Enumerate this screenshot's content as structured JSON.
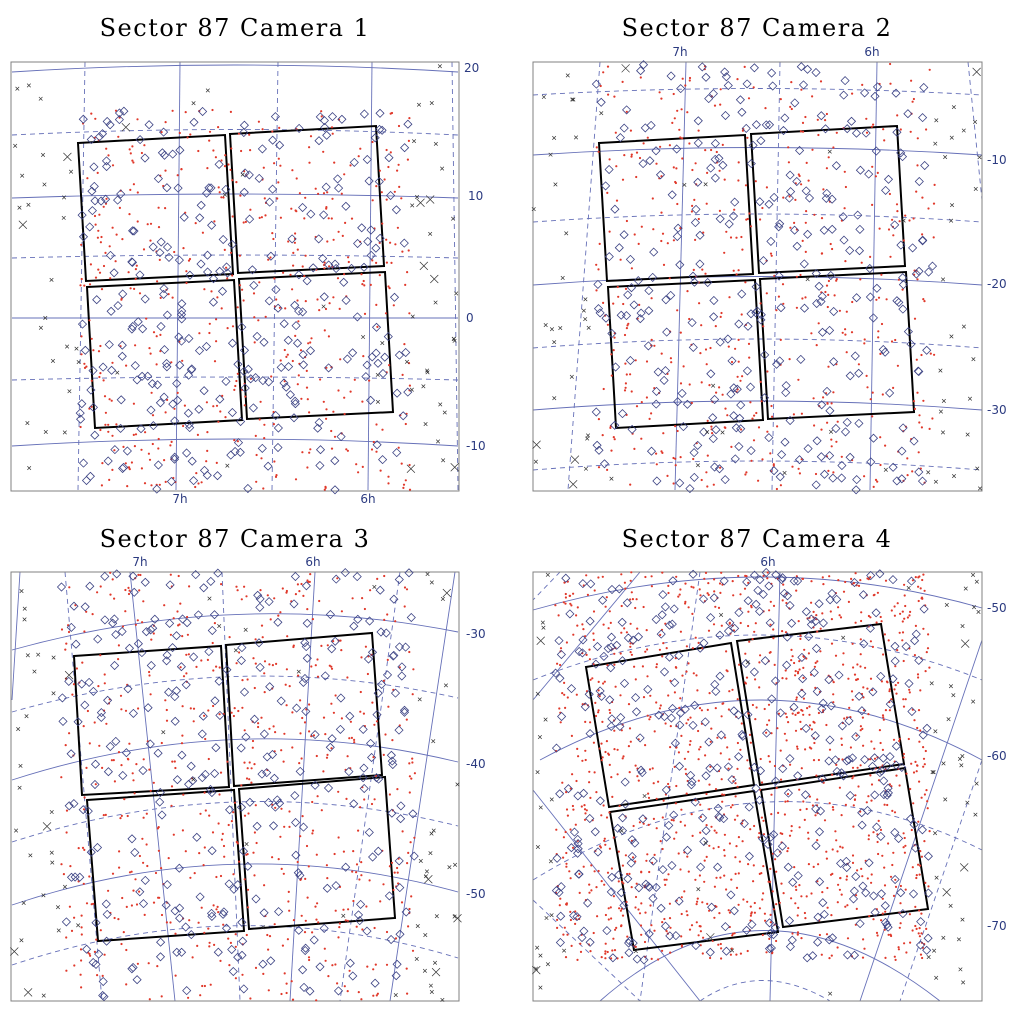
{
  "colors": {
    "grid": "#6670b8",
    "diamond": "#3c4384",
    "dot": "#e0382a",
    "cross": "#333333",
    "ccd": "#000000",
    "frame": "#808080"
  },
  "panels": [
    {
      "title": "Sector 87 Camera 1",
      "ra_labels": [
        "7h",
        "6h"
      ],
      "dec_labels": [
        "20",
        "10",
        "0",
        "-10"
      ]
    },
    {
      "title": "Sector 87 Camera 2",
      "ra_labels": [
        "7h",
        "6h"
      ],
      "dec_labels": [
        "-10",
        "-20",
        "-30"
      ]
    },
    {
      "title": "Sector 87 Camera 3",
      "ra_labels": [
        "7h",
        "6h"
      ],
      "dec_labels": [
        "-30",
        "-40",
        "-50"
      ]
    },
    {
      "title": "Sector 87 Camera 4",
      "ra_labels": [
        "6h"
      ],
      "dec_labels": [
        "-50",
        "-60",
        "-70"
      ]
    }
  ]
}
